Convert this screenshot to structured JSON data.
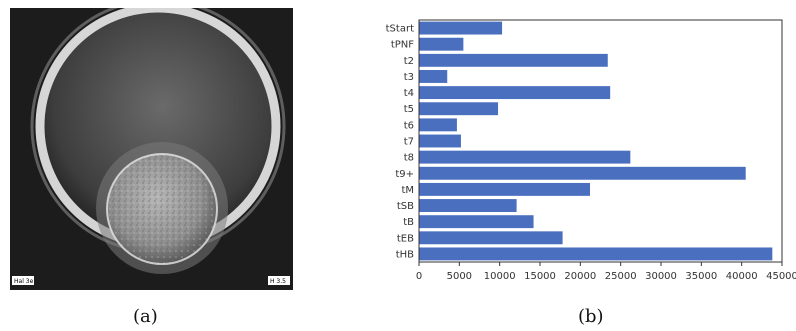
{
  "panels": {
    "a": {
      "caption": "(a)",
      "stamp_left": "Hal 3e",
      "stamp_right": "H 3.5"
    },
    "b": {
      "caption": "(b)"
    }
  },
  "chart_data": {
    "type": "bar",
    "orientation": "horizontal",
    "categories": [
      "tStart",
      "tPNF",
      "t2",
      "t3",
      "t4",
      "t5",
      "t6",
      "t7",
      "t8",
      "t9+",
      "tM",
      "tSB",
      "tB",
      "tEB",
      "tHB"
    ],
    "values": [
      10300,
      5500,
      23400,
      3500,
      23700,
      9800,
      4700,
      5200,
      26200,
      40500,
      21200,
      12100,
      14200,
      17800,
      43800
    ],
    "xticks": [
      0,
      5000,
      10000,
      15000,
      20000,
      25000,
      30000,
      35000,
      40000,
      45000
    ],
    "xlim": [
      0,
      45000
    ],
    "title": "",
    "xlabel": "",
    "ylabel": "",
    "bar_color": "#4a6fbe",
    "grid": false,
    "legend": "none"
  }
}
